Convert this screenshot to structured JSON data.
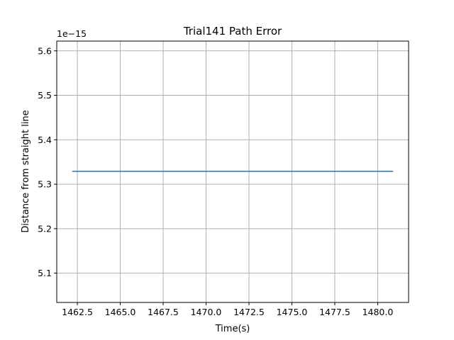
{
  "chart_data": {
    "type": "line",
    "title": "Trial141 Path Error",
    "xlabel": "Time(s)",
    "ylabel": "Distance from straight line",
    "y_offset_label": "1e−15",
    "grid": true,
    "legend": "none",
    "xlim": [
      1461.3,
      1481.8
    ],
    "ylim": [
      5.034,
      5.622
    ],
    "x_ticks": [
      1462.5,
      1465.0,
      1467.5,
      1470.0,
      1472.5,
      1475.0,
      1477.5,
      1480.0
    ],
    "x_tick_labels": [
      "1462.5",
      "1465.0",
      "1467.5",
      "1470.0",
      "1472.5",
      "1475.0",
      "1477.5",
      "1480.0"
    ],
    "y_ticks": [
      5.1,
      5.2,
      5.3,
      5.4,
      5.5,
      5.6
    ],
    "y_tick_labels": [
      "5.1",
      "5.2",
      "5.3",
      "5.4",
      "5.5",
      "5.6"
    ],
    "series": [
      {
        "color": "#1f77b4",
        "x": [
          1462.2,
          1480.9
        ],
        "y": [
          5.329,
          5.329
        ]
      }
    ]
  }
}
